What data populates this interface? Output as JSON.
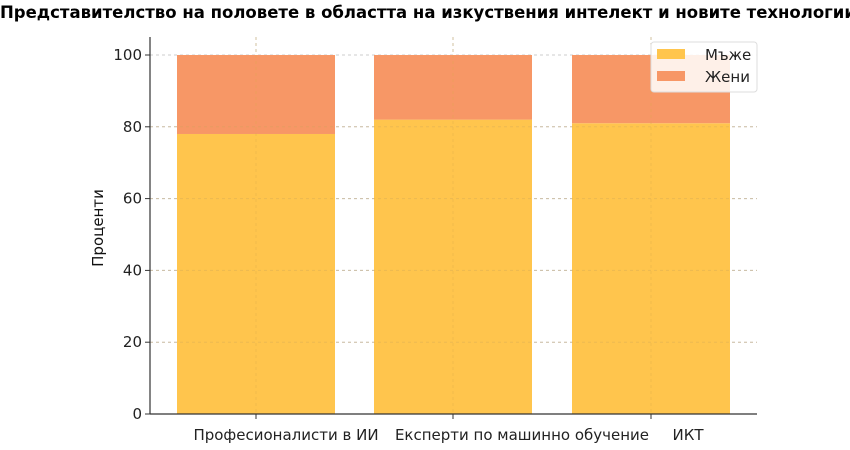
{
  "chart_data": {
    "type": "bar",
    "stacked": true,
    "title": "Представителство на половете в областта на изкуствения интелект и новите технологии",
    "xlabel": "",
    "ylabel": "Проценти",
    "categories": [
      "Професионалисти в ИИ",
      "Експерти по машинно обучение",
      "ИКТ"
    ],
    "series": [
      {
        "name": "Мъже",
        "values": [
          78,
          82,
          81
        ],
        "color": "#ffc54d"
      },
      {
        "name": "Жени",
        "values": [
          22,
          18,
          19
        ],
        "color": "#f79766"
      }
    ],
    "ylim": [
      0,
      100
    ],
    "yticks": [
      0,
      20,
      40,
      60,
      80,
      100
    ],
    "grid": true,
    "legend_position": "top-right"
  }
}
